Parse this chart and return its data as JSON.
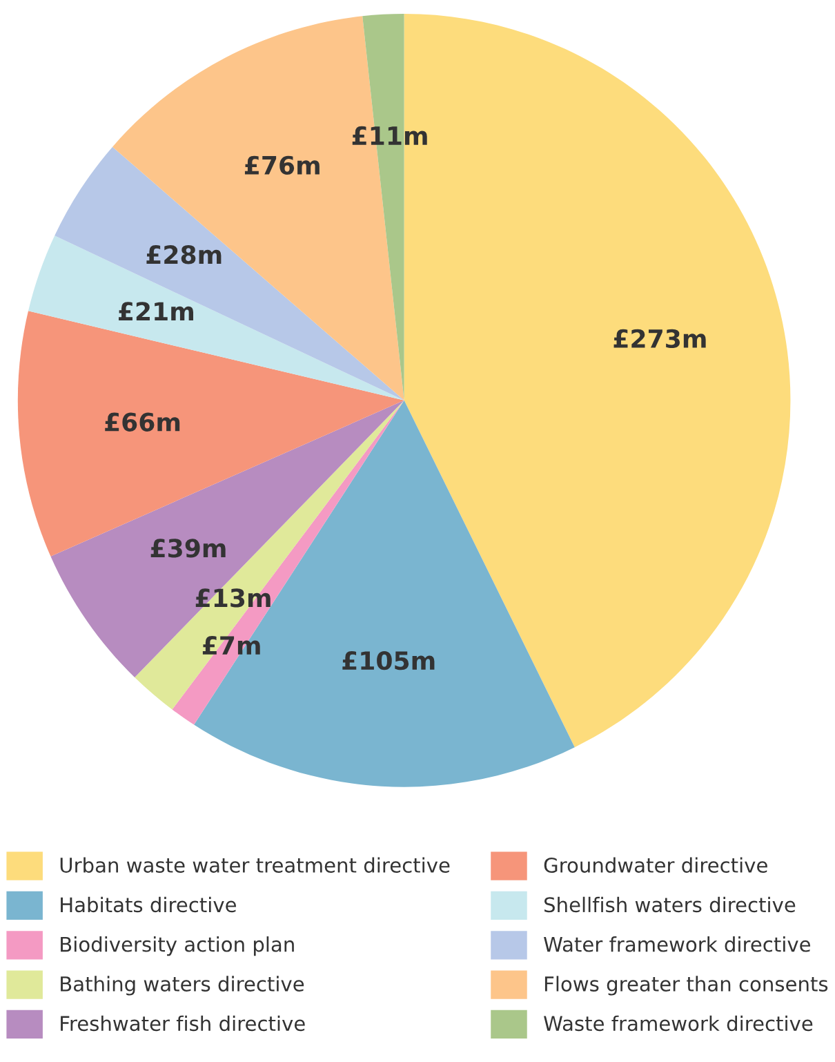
{
  "chart_data": {
    "type": "pie",
    "categories": [
      "Urban waste water treatment directive",
      "Habitats directive",
      "Biodiversity action plan",
      "Bathing waters directive",
      "Freshwater fish directive",
      "Groundwater directive",
      "Shellfish waters directive",
      "Water framework directive",
      "Flows greater than consents",
      "Waste framework directive"
    ],
    "values": [
      273,
      105,
      7,
      13,
      39,
      66,
      21,
      28,
      76,
      11
    ],
    "value_labels": [
      "£273m",
      "£105m",
      "£7m",
      "£13m",
      "£39m",
      "£66m",
      "£21m",
      "£28m",
      "£76m",
      "£11m"
    ],
    "colors": [
      "#fddc7c",
      "#7ab5d0",
      "#f49ac3",
      "#e0e99a",
      "#b78cc0",
      "#f6957a",
      "#c7e8ee",
      "#b7c8e8",
      "#fdc58a",
      "#aac78a"
    ],
    "legend": "bottom"
  }
}
